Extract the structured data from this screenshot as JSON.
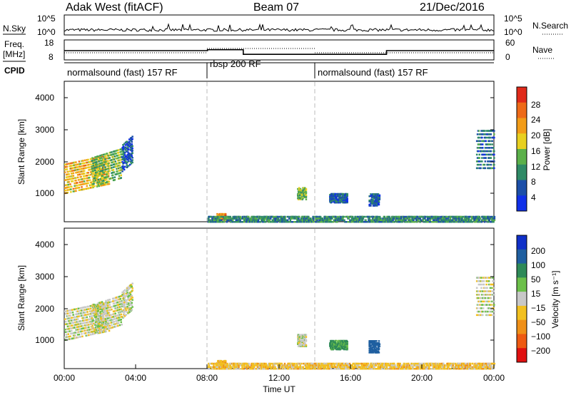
{
  "header": {
    "station": "Adak West (fitACF)",
    "beam": "Beam 07",
    "date": "21/Dec/2016"
  },
  "nsky_panel": {
    "label": "N.Sky",
    "right_label": "N.Search",
    "ticks": [
      "10^5",
      "10^0"
    ]
  },
  "freq_panel": {
    "label_line1": "Freq.",
    "label_line2": "[MHz]",
    "right_label": "Nave",
    "left_ticks": [
      "18",
      "8"
    ],
    "right_ticks": [
      "60",
      "0"
    ]
  },
  "cpid_panel": {
    "label": "CPID",
    "modes": [
      {
        "text": "normalsound (fast) 157 RF",
        "start": "00:00",
        "end": "08:00"
      },
      {
        "text": "rbsp 200 RF",
        "start": "08:00",
        "end": "14:00"
      },
      {
        "text": "normalsound (fast) 157 RF",
        "start": "14:00",
        "end": "24:00"
      }
    ]
  },
  "power_panel": {
    "ylabel": "Slant Range [km]",
    "yticks": [
      "1000",
      "2000",
      "3000",
      "4000"
    ],
    "colorbar_label": "Power [dB]",
    "colorbar_ticks": [
      "4",
      "8",
      "12",
      "16",
      "20",
      "24",
      "28"
    ],
    "colors": [
      "#1030e8",
      "#1c4fa8",
      "#2f8a66",
      "#5bb04a",
      "#e8d020",
      "#f29c18",
      "#ee6a18",
      "#e02a1a"
    ]
  },
  "velocity_panel": {
    "ylabel": "Slant Range [km]",
    "yticks": [
      "1000",
      "2000",
      "3000",
      "4000"
    ],
    "colorbar_label": "Velocity [m s⁻¹]",
    "colorbar_ticks": [
      "200",
      "100",
      "50",
      "15",
      "−15",
      "−50",
      "−100",
      "−200"
    ],
    "colors": [
      "#1030c8",
      "#1f5fa0",
      "#2e8a58",
      "#6cc04a",
      "#c8c8c8",
      "#f2c020",
      "#f09018",
      "#ee5a12",
      "#e01010"
    ]
  },
  "xaxis": {
    "ticks": [
      "00:00",
      "04:00",
      "08:00",
      "12:00",
      "16:00",
      "20:00",
      "00:00"
    ],
    "label": "Time UT"
  },
  "chart_data": {
    "type": "heatmap",
    "title": "Adak West (fitACF) Beam 07 21/Dec/2016",
    "xlabel": "Time UT",
    "ylabel": "Slant Range [km]",
    "xlim_hours": [
      0,
      24
    ],
    "ylim_km": [
      180,
      4650
    ],
    "freq_mhz": [
      {
        "start_hour": 0,
        "end_hour": 8,
        "value": 13
      },
      {
        "start_hour": 8,
        "end_hour": 10,
        "value": 13.5
      },
      {
        "start_hour": 10,
        "end_hour": 18,
        "value": 11
      },
      {
        "start_hour": 18,
        "end_hour": 24,
        "value": 13
      }
    ],
    "scatter_regions": [
      {
        "start_hour": 0.0,
        "end_hour": 2.5,
        "range_low_km": 1100,
        "range_high_km": 2100,
        "power_db": 20,
        "velocity_ms": 0
      },
      {
        "start_hour": 1.5,
        "end_hour": 3.2,
        "range_low_km": 1300,
        "range_high_km": 2300,
        "power_db": 14,
        "velocity_ms": 0
      },
      {
        "start_hour": 3.2,
        "end_hour": 3.8,
        "range_low_km": 1800,
        "range_high_km": 2700,
        "power_db": 6,
        "velocity_ms": 0
      },
      {
        "start_hour": 8.5,
        "end_hour": 9.0,
        "range_low_km": 250,
        "range_high_km": 450,
        "power_db": 24,
        "velocity_ms": -40
      },
      {
        "start_hour": 13.0,
        "end_hour": 13.5,
        "range_low_km": 900,
        "range_high_km": 1300,
        "power_db": 14,
        "velocity_ms": 0
      },
      {
        "start_hour": 14.8,
        "end_hour": 15.8,
        "range_low_km": 800,
        "range_high_km": 1100,
        "power_db": 6,
        "velocity_ms": 60
      },
      {
        "start_hour": 17.0,
        "end_hour": 17.6,
        "range_low_km": 700,
        "range_high_km": 1100,
        "power_db": 6,
        "velocity_ms": 150
      },
      {
        "start_hour": 23.0,
        "end_hour": 24.0,
        "range_low_km": 1900,
        "range_high_km": 3200,
        "power_db": 8,
        "velocity_ms": 0
      },
      {
        "start_hour": 8.0,
        "end_hour": 24.0,
        "range_low_km": 180,
        "range_high_km": 400,
        "power_db": 10,
        "velocity_ms": -30
      }
    ]
  }
}
